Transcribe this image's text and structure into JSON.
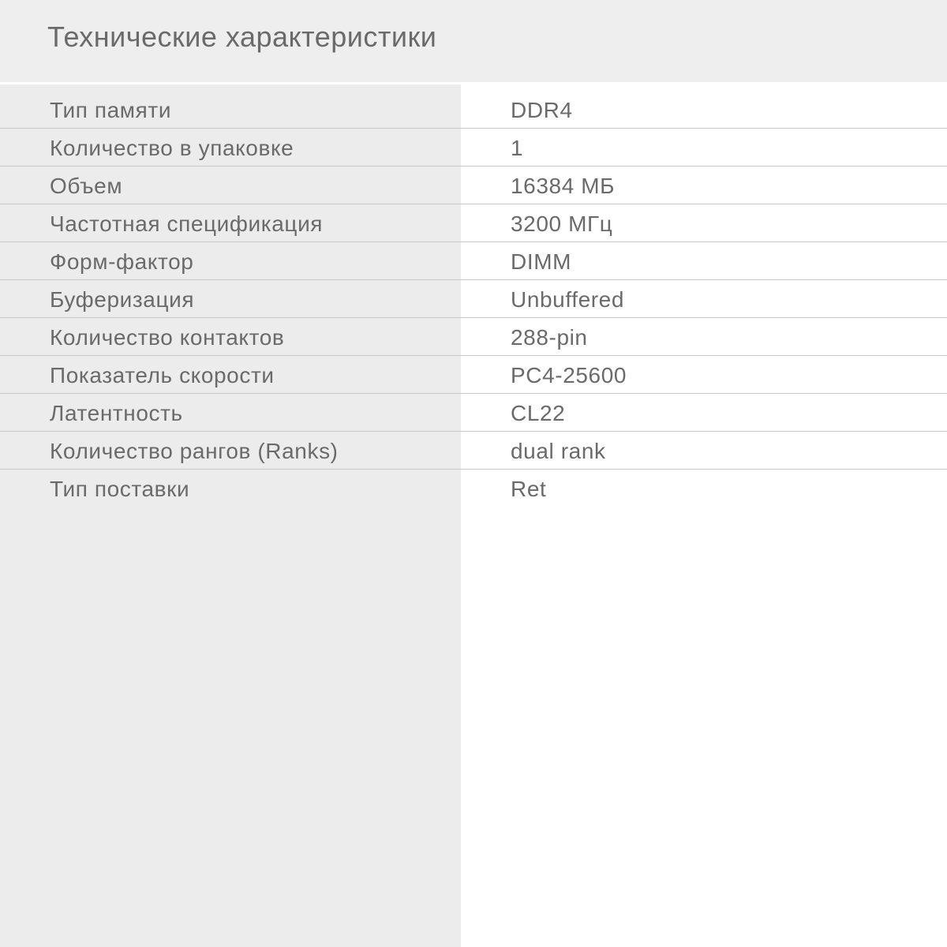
{
  "title": "Технические характеристики",
  "specs": [
    {
      "label": "Тип памяти",
      "value": "DDR4"
    },
    {
      "label": "Количество в упаковке",
      "value": "1"
    },
    {
      "label": "Объем",
      "value": "16384 МБ"
    },
    {
      "label": "Частотная спецификация",
      "value": "3200 МГц"
    },
    {
      "label": "Форм-фактор",
      "value": "DIMM"
    },
    {
      "label": "Буферизация",
      "value": "Unbuffered"
    },
    {
      "label": "Количество контактов",
      "value": "288-pin"
    },
    {
      "label": "Показатель скорости",
      "value": "PC4-25600"
    },
    {
      "label": "Латентность",
      "value": "CL22"
    },
    {
      "label": "Количество рангов (Ranks)",
      "value": "dual rank"
    },
    {
      "label": "Тип поставки",
      "value": "Ret"
    }
  ]
}
